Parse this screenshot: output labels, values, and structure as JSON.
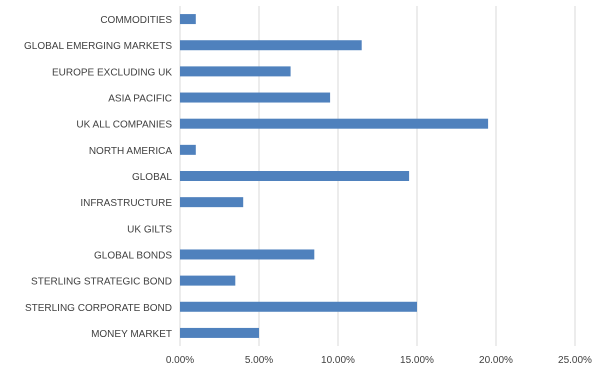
{
  "chart_data": {
    "type": "bar",
    "orientation": "horizontal",
    "categories": [
      "COMMODITIES",
      "GLOBAL EMERGING MARKETS",
      "EUROPE EXCLUDING UK",
      "ASIA PACIFIC",
      "UK ALL COMPANIES",
      "NORTH AMERICA",
      "GLOBAL",
      "INFRASTRUCTURE",
      "UK GILTS",
      "GLOBAL BONDS",
      "STERLING STRATEGIC BOND",
      "STERLING CORPORATE BOND",
      "MONEY MARKET"
    ],
    "values": [
      1.0,
      11.5,
      7.0,
      9.5,
      19.5,
      1.0,
      14.5,
      4.0,
      0.0,
      8.5,
      3.5,
      15.0,
      5.0
    ],
    "value_unit": "percent",
    "xlim": [
      0,
      25
    ],
    "x_ticks": [
      "0.00%",
      "5.00%",
      "10.00%",
      "15.00%",
      "20.00%",
      "25.00%"
    ],
    "title": "",
    "xlabel": "",
    "ylabel": "",
    "grid": "vertical",
    "legend": "none",
    "colors": {
      "bar": "#4f81bd",
      "grid": "#d9d9d9",
      "text": "#404040"
    }
  }
}
